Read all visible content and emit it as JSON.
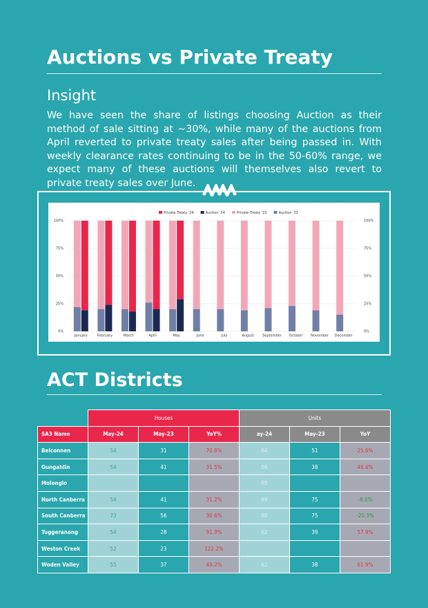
{
  "header": {
    "title": "Auctions vs Private Treaty"
  },
  "insight": {
    "heading": "Insight",
    "text": "We have seen the share of listings choosing Auction as their method of sale sitting at ~30%, while many of the auctions from April reverted to private treaty sales after being passed in. With weekly clearance rates continuing to be in the 50-60% range, we expect many of these auctions will themselves also revert to private treaty sales over June."
  },
  "chart_data": {
    "type": "bar",
    "stacked": true,
    "categories": [
      "January",
      "February",
      "March",
      "April",
      "May",
      "June",
      "July",
      "August",
      "September",
      "October",
      "November",
      "December"
    ],
    "series": [
      {
        "name": "Private Treaty '24",
        "color": "#e8274b",
        "stack": "2024",
        "values": [
          81,
          76,
          82,
          80,
          71,
          null,
          null,
          null,
          null,
          null,
          null,
          null
        ]
      },
      {
        "name": "Auction '24",
        "color": "#1c2951",
        "stack": "2024",
        "values": [
          19,
          24,
          18,
          20,
          29,
          null,
          null,
          null,
          null,
          null,
          null,
          null
        ]
      },
      {
        "name": "Private Treaty '23",
        "color": "#f2a7b8",
        "stack": "2023",
        "values": [
          78,
          80,
          80,
          74,
          80,
          80,
          80,
          81,
          79,
          77,
          81,
          85
        ]
      },
      {
        "name": "Auction '23",
        "color": "#6f7fa8",
        "stack": "2023",
        "values": [
          22,
          20,
          20,
          26,
          20,
          20,
          20,
          19,
          21,
          23,
          19,
          15
        ]
      }
    ],
    "ylim": [
      0,
      100
    ],
    "yticks": [
      {
        "value": 0,
        "label": "0%"
      },
      {
        "value": 25,
        "label": "25%"
      },
      {
        "value": 50,
        "label": "50%"
      },
      {
        "value": 75,
        "label": "75%"
      },
      {
        "value": 100,
        "label": "100%"
      }
    ],
    "y2lim": [
      0,
      100
    ],
    "y2ticks": [
      {
        "value": 0,
        "label": "0%"
      },
      {
        "value": 25,
        "label": "25%"
      },
      {
        "value": 50,
        "label": "50%"
      },
      {
        "value": 75,
        "label": "75%"
      },
      {
        "value": 100,
        "label": "100%"
      }
    ],
    "grid": true,
    "legend": "top"
  },
  "section": {
    "title": "ACT Districts"
  },
  "table": {
    "groups": [
      "Houses",
      "Units"
    ],
    "header": [
      "SA3 Name",
      "May-24",
      "May-23",
      "YoY%",
      "ay-24",
      "May-23",
      "YoY"
    ],
    "rows": [
      [
        "Belconnen",
        "54",
        "31",
        "70.8%",
        "64",
        "51",
        "25.6%"
      ],
      [
        "Gungahlin",
        "54",
        "41",
        "31.5%",
        "56",
        "38",
        "49.6%"
      ],
      [
        "Molonglo",
        null,
        null,
        null,
        "65",
        null,
        null
      ],
      [
        "North Canberra",
        "54",
        "41",
        "31.2%",
        "69",
        "75",
        "-8.0%"
      ],
      [
        "South Canberra",
        "73",
        "56",
        "30.6%",
        "60",
        "75",
        "-20.3%"
      ],
      [
        "Tuggeranong",
        "54",
        "28",
        "91.9%",
        "62",
        "39",
        "57.9%"
      ],
      [
        "Weston Creek",
        "52",
        "23",
        "122.2%",
        null,
        null,
        null
      ],
      [
        "Woden Valley",
        "55",
        "37",
        "49.2%",
        "62",
        "38",
        "61.9%"
      ]
    ]
  }
}
